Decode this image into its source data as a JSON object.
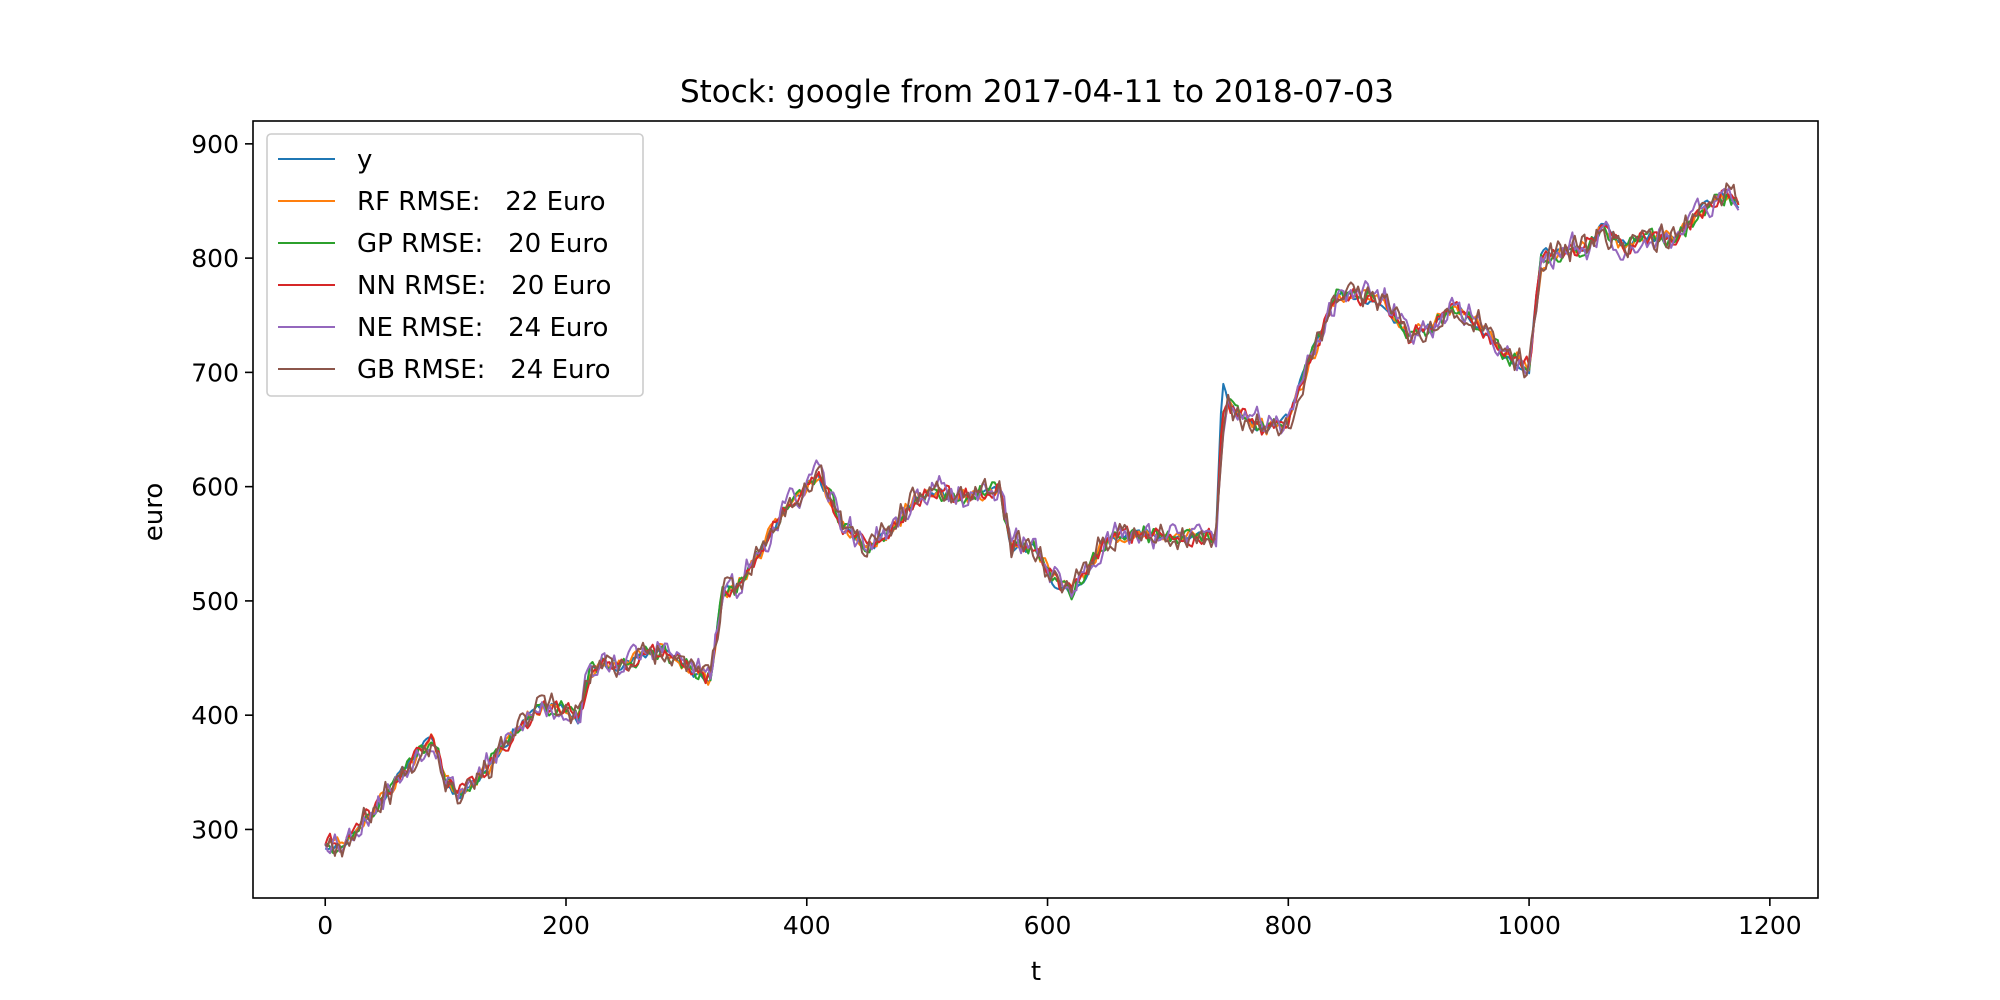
{
  "chart_data": {
    "type": "line",
    "title": "Stock: google from 2017-04-11 to 2018-07-03",
    "xlabel": "t",
    "ylabel": "euro",
    "xlim": [
      -60,
      1240
    ],
    "ylim": [
      240,
      920
    ],
    "xticks": [
      0,
      200,
      400,
      600,
      800,
      1000,
      1200
    ],
    "yticks": [
      300,
      400,
      500,
      600,
      700,
      800,
      900
    ],
    "grid": false,
    "legend_position": "top-left",
    "anchors_x": [
      0,
      15,
      20,
      40,
      60,
      80,
      90,
      100,
      110,
      120,
      140,
      160,
      180,
      200,
      210,
      220,
      250,
      280,
      300,
      320,
      330,
      340,
      360,
      380,
      400,
      410,
      430,
      450,
      470,
      490,
      510,
      520,
      540,
      560,
      570,
      590,
      600,
      610,
      620,
      630,
      650,
      680,
      700,
      720,
      740,
      745,
      750,
      760,
      780,
      800,
      820,
      840,
      860,
      880,
      900,
      920,
      940,
      960,
      980,
      1000,
      1010,
      1030,
      1050,
      1060,
      1080,
      1100,
      1120,
      1140,
      1160,
      1170,
      1175
    ],
    "series": [
      {
        "name": "y",
        "color": "#1f77b4",
        "noise": 5,
        "seed": 11,
        "values": [
          285,
          285,
          295,
          315,
          345,
          375,
          378,
          340,
          330,
          338,
          360,
          390,
          410,
          405,
          395,
          440,
          445,
          460,
          440,
          430,
          510,
          510,
          540,
          580,
          600,
          610,
          565,
          545,
          560,
          590,
          595,
          590,
          590,
          600,
          545,
          545,
          525,
          510,
          505,
          520,
          555,
          560,
          555,
          555,
          558,
          690,
          675,
          660,
          650,
          660,
          720,
          770,
          765,
          760,
          730,
          740,
          760,
          735,
          715,
          700,
          805,
          805,
          810,
          830,
          810,
          820,
          815,
          840,
          855,
          850,
          840
        ]
      },
      {
        "name": "RF RMSE:   22 Euro",
        "color": "#ff7f0e",
        "noise": 8,
        "seed": 23,
        "values": [
          290,
          288,
          292,
          318,
          343,
          370,
          380,
          345,
          332,
          340,
          360,
          388,
          408,
          403,
          398,
          438,
          447,
          458,
          443,
          433,
          505,
          510,
          540,
          578,
          600,
          612,
          567,
          547,
          562,
          588,
          597,
          592,
          592,
          598,
          550,
          548,
          530,
          515,
          510,
          522,
          555,
          560,
          556,
          557,
          556,
          650,
          670,
          665,
          652,
          658,
          715,
          765,
          768,
          762,
          735,
          742,
          758,
          738,
          718,
          705,
          795,
          808,
          810,
          828,
          808,
          818,
          818,
          838,
          852,
          856,
          848
        ]
      },
      {
        "name": "GP RMSE:   20 Euro",
        "color": "#2ca02c",
        "noise": 9,
        "seed": 37,
        "values": [
          288,
          286,
          293,
          316,
          344,
          372,
          379,
          343,
          331,
          339,
          361,
          389,
          409,
          404,
          397,
          439,
          446,
          459,
          442,
          432,
          507,
          510,
          540,
          579,
          600,
          611,
          566,
          546,
          561,
          589,
          596,
          591,
          591,
          599,
          548,
          547,
          528,
          513,
          508,
          521,
          555,
          560,
          555,
          556,
          557,
          660,
          672,
          662,
          651,
          659,
          718,
          768,
          766,
          761,
          732,
          741,
          759,
          736,
          716,
          703,
          800,
          806,
          810,
          829,
          809,
          819,
          816,
          839,
          853,
          853,
          845
        ]
      },
      {
        "name": "NN RMSE:   20 Euro",
        "color": "#d62728",
        "noise": 9,
        "seed": 41,
        "values": [
          289,
          287,
          292,
          317,
          343,
          371,
          380,
          344,
          332,
          340,
          360,
          388,
          408,
          404,
          397,
          438,
          446,
          458,
          442,
          433,
          506,
          510,
          540,
          578,
          600,
          611,
          566,
          547,
          561,
          588,
          596,
          591,
          591,
          599,
          549,
          548,
          529,
          514,
          509,
          521,
          555,
          560,
          556,
          556,
          557,
          655,
          671,
          663,
          651,
          659,
          716,
          766,
          767,
          761,
          733,
          741,
          758,
          737,
          717,
          704,
          798,
          807,
          810,
          829,
          809,
          818,
          817,
          838,
          853,
          855,
          847
        ]
      },
      {
        "name": "NE RMSE:   24 Euro",
        "color": "#9467bd",
        "noise": 15,
        "seed": 53,
        "values": [
          292,
          289,
          293,
          318,
          343,
          370,
          380,
          346,
          333,
          341,
          361,
          388,
          408,
          403,
          398,
          440,
          448,
          459,
          444,
          434,
          504,
          511,
          541,
          578,
          601,
          613,
          568,
          548,
          563,
          589,
          598,
          593,
          593,
          599,
          552,
          549,
          531,
          516,
          511,
          523,
          556,
          561,
          557,
          557,
          556,
          645,
          670,
          666,
          653,
          658,
          714,
          764,
          769,
          763,
          736,
          743,
          758,
          739,
          719,
          706,
          793,
          809,
          811,
          828,
          808,
          818,
          819,
          838,
          852,
          857,
          849
        ]
      },
      {
        "name": "GB RMSE:   24 Euro",
        "color": "#8c564b",
        "noise": 15,
        "seed": 67,
        "values": [
          291,
          288,
          292,
          318,
          343,
          370,
          380,
          345,
          333,
          341,
          361,
          388,
          408,
          403,
          398,
          439,
          447,
          459,
          443,
          434,
          505,
          511,
          541,
          578,
          601,
          612,
          567,
          548,
          562,
          589,
          597,
          592,
          592,
          599,
          551,
          549,
          530,
          516,
          510,
          523,
          556,
          561,
          557,
          557,
          556,
          648,
          670,
          665,
          652,
          658,
          715,
          765,
          769,
          763,
          735,
          743,
          758,
          739,
          719,
          706,
          795,
          809,
          811,
          828,
          808,
          818,
          818,
          838,
          852,
          857,
          849
        ]
      }
    ]
  }
}
